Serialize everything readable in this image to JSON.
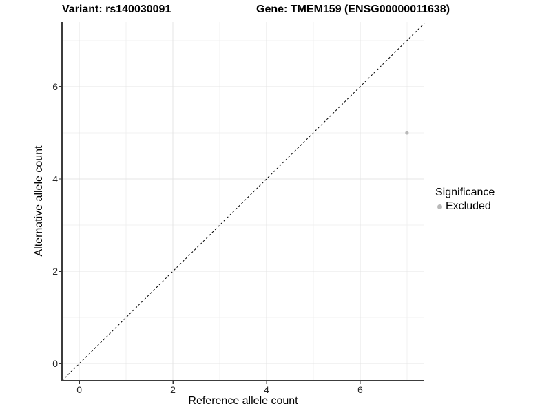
{
  "header": {
    "title_left": "Variant: rs140030091",
    "title_right": "Gene: TMEM159 (ENSG00000011638)"
  },
  "chart_data": {
    "type": "scatter",
    "xlabel": "Reference allele count",
    "ylabel": "Alternative allele count",
    "xlim": [
      -0.37,
      7.37
    ],
    "ylim": [
      -0.37,
      7.4
    ],
    "x_ticks": [
      0,
      2,
      4,
      6
    ],
    "y_ticks": [
      0,
      2,
      4,
      6
    ],
    "x_minor_gridlines": [
      1,
      3,
      5,
      7
    ],
    "y_minor_gridlines": [
      1,
      3,
      5,
      7
    ],
    "grid": "on",
    "reference_line": {
      "slope": 1,
      "intercept": 0,
      "style": "dashed",
      "color": "#000000"
    },
    "series": [
      {
        "name": "Excluded",
        "color": "#b9b9b9",
        "points": [
          {
            "x": 7,
            "y": 5
          }
        ]
      }
    ],
    "legend": {
      "title": "Significance",
      "position": "right",
      "entries": [
        {
          "label": "Excluded",
          "color": "#b9b9b9"
        }
      ]
    }
  },
  "colors": {
    "background": "#ffffff",
    "grid_major": "#e4e4e4",
    "grid_minor": "#f1f1f1",
    "axis_line": "#3c3c3c",
    "tick_mark": "#333333",
    "point": "#b9b9b9"
  }
}
